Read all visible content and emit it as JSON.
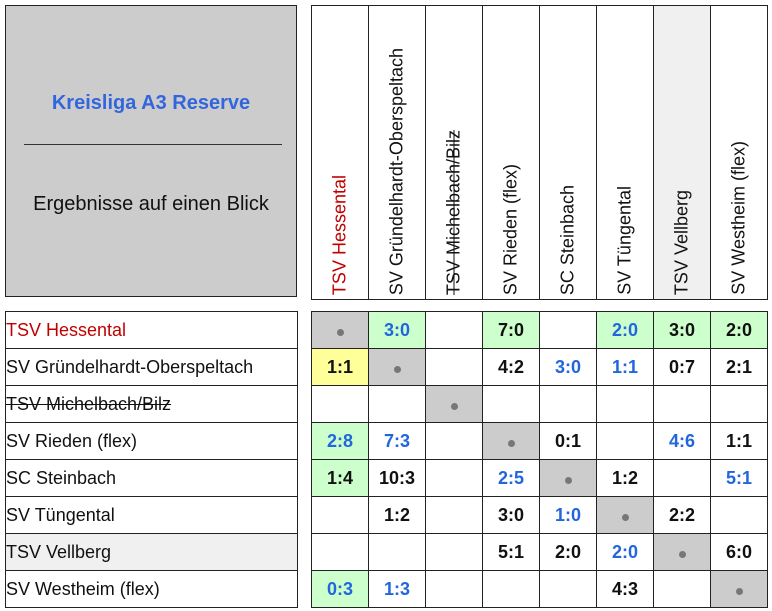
{
  "header": {
    "title": "Kreisliga A3 Reserve",
    "subtitle": "Ergebnisse auf einen Blick"
  },
  "teams": [
    "TSV Hessental",
    "SV Gründelhardt-Oberspeltach",
    "TSV Michelbach/Bilz",
    "SV Rieden (flex)",
    "SC Steinbach",
    "SV Tüngental",
    "TSV Vellberg",
    "SV Westheim (flex)"
  ],
  "colors": {
    "home_win_bg": "#ccffcc",
    "draw_bg": "#ffff99",
    "diagonal_bg": "#cccccc",
    "away_win_text": "#2266dd",
    "highlight_team": "#c00000"
  },
  "results": [
    [
      {
        "v": "•",
        "diag": true
      },
      {
        "v": "3:0",
        "c": "blue",
        "bg": "green"
      },
      {
        "v": ""
      },
      {
        "v": "7:0",
        "c": "black",
        "bg": "green"
      },
      {
        "v": ""
      },
      {
        "v": "2:0",
        "c": "blue",
        "bg": "green"
      },
      {
        "v": "3:0",
        "c": "black",
        "bg": "green"
      },
      {
        "v": "2:0",
        "c": "black",
        "bg": "green"
      }
    ],
    [
      {
        "v": "1:1",
        "c": "black",
        "bg": "yellow"
      },
      {
        "v": "•",
        "diag": true
      },
      {
        "v": ""
      },
      {
        "v": "4:2",
        "c": "black"
      },
      {
        "v": "3:0",
        "c": "blue"
      },
      {
        "v": "1:1",
        "c": "blue"
      },
      {
        "v": "0:7",
        "c": "black"
      },
      {
        "v": "2:1",
        "c": "black"
      }
    ],
    [
      {
        "v": ""
      },
      {
        "v": ""
      },
      {
        "v": "•",
        "diag": true
      },
      {
        "v": ""
      },
      {
        "v": ""
      },
      {
        "v": ""
      },
      {
        "v": ""
      },
      {
        "v": ""
      }
    ],
    [
      {
        "v": "2:8",
        "c": "blue",
        "bg": "green"
      },
      {
        "v": "7:3",
        "c": "blue"
      },
      {
        "v": ""
      },
      {
        "v": "•",
        "diag": true
      },
      {
        "v": "0:1",
        "c": "black"
      },
      {
        "v": ""
      },
      {
        "v": "4:6",
        "c": "blue"
      },
      {
        "v": "1:1",
        "c": "black"
      }
    ],
    [
      {
        "v": "1:4",
        "c": "black",
        "bg": "green"
      },
      {
        "v": "10:3",
        "c": "black"
      },
      {
        "v": ""
      },
      {
        "v": "2:5",
        "c": "blue"
      },
      {
        "v": "•",
        "diag": true
      },
      {
        "v": "1:2",
        "c": "black"
      },
      {
        "v": ""
      },
      {
        "v": "5:1",
        "c": "blue"
      }
    ],
    [
      {
        "v": ""
      },
      {
        "v": "1:2",
        "c": "black"
      },
      {
        "v": ""
      },
      {
        "v": "3:0",
        "c": "black"
      },
      {
        "v": "1:0",
        "c": "blue"
      },
      {
        "v": "•",
        "diag": true
      },
      {
        "v": "2:2",
        "c": "black"
      },
      {
        "v": ""
      }
    ],
    [
      {
        "v": ""
      },
      {
        "v": ""
      },
      {
        "v": ""
      },
      {
        "v": "5:1",
        "c": "black"
      },
      {
        "v": "2:0",
        "c": "black"
      },
      {
        "v": "2:0",
        "c": "blue"
      },
      {
        "v": "•",
        "diag": true
      },
      {
        "v": "6:0",
        "c": "black"
      }
    ],
    [
      {
        "v": "0:3",
        "c": "blue",
        "bg": "green"
      },
      {
        "v": "1:3",
        "c": "blue"
      },
      {
        "v": ""
      },
      {
        "v": ""
      },
      {
        "v": ""
      },
      {
        "v": "4:3",
        "c": "black"
      },
      {
        "v": ""
      },
      {
        "v": "•",
        "diag": true
      }
    ]
  ]
}
